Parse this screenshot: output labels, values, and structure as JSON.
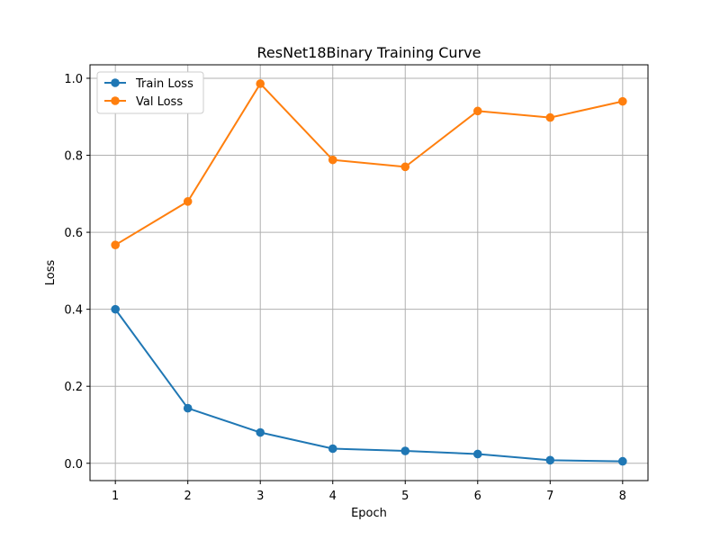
{
  "chart_data": {
    "type": "line",
    "title": "ResNet18Binary Training Curve",
    "xlabel": "Epoch",
    "ylabel": "Loss",
    "x": [
      1,
      2,
      3,
      4,
      5,
      6,
      7,
      8
    ],
    "xticks": [
      1,
      2,
      3,
      4,
      5,
      6,
      7,
      8
    ],
    "yticks": [
      0.0,
      0.2,
      0.4,
      0.6,
      0.8,
      1.0
    ],
    "xlim": [
      0.65,
      8.35
    ],
    "ylim": [
      -0.045,
      1.035
    ],
    "grid": true,
    "legend_position": "top-left",
    "series": [
      {
        "name": "Train Loss",
        "color": "#1f77b4",
        "values": [
          0.4,
          0.143,
          0.08,
          0.038,
          0.032,
          0.024,
          0.008,
          0.005
        ]
      },
      {
        "name": "Val Loss",
        "color": "#ff7f0e",
        "values": [
          0.567,
          0.68,
          0.986,
          0.788,
          0.77,
          0.915,
          0.898,
          0.94
        ]
      }
    ]
  }
}
